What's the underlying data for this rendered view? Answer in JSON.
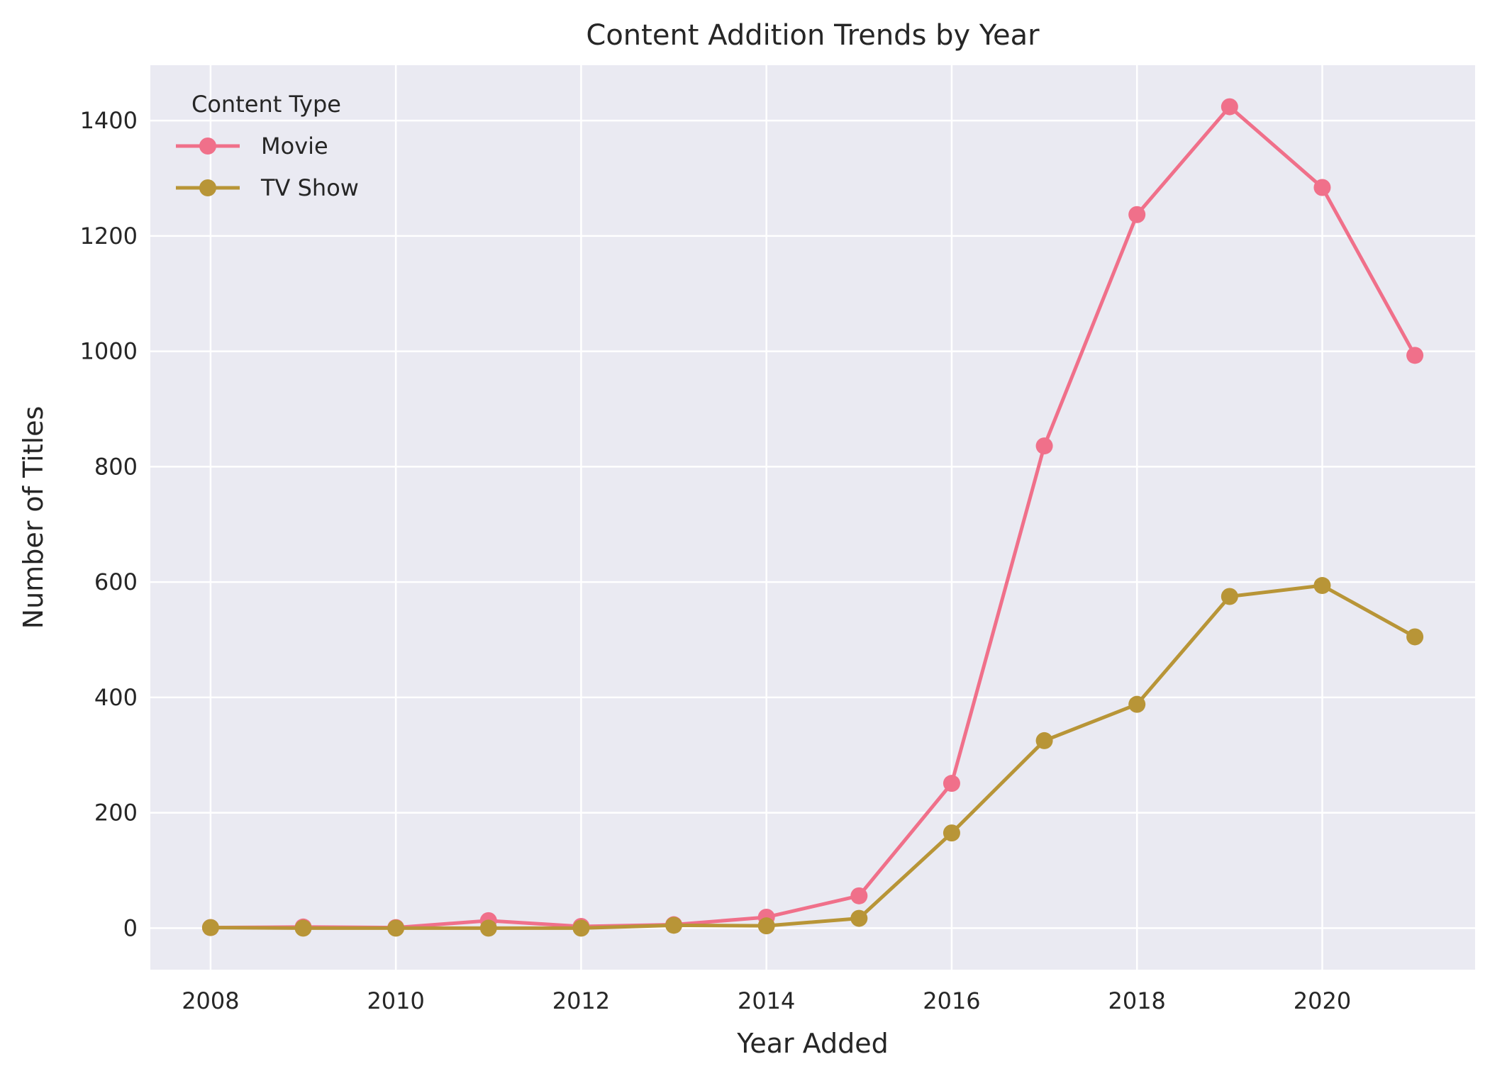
{
  "chart_data": {
    "type": "line",
    "title": "Content Addition Trends by Year",
    "xlabel": "Year Added",
    "ylabel": "Number of Titles",
    "x": [
      2008,
      2009,
      2010,
      2011,
      2012,
      2013,
      2014,
      2015,
      2016,
      2017,
      2018,
      2019,
      2020,
      2021
    ],
    "series": [
      {
        "name": "Movie",
        "color": "#f0708a",
        "values": [
          1,
          2,
          1,
          13,
          3,
          6,
          19,
          56,
          251,
          836,
          1237,
          1424,
          1284,
          993
        ]
      },
      {
        "name": "TV Show",
        "color": "#b89537",
        "values": [
          1,
          0,
          0,
          0,
          0,
          5,
          4,
          17,
          165,
          325,
          388,
          575,
          594,
          505
        ]
      }
    ],
    "xlim": [
      2007.35,
      2021.65
    ],
    "ylim": [
      -72,
      1496
    ],
    "xticks": [
      "2008",
      "2010",
      "2012",
      "2014",
      "2016",
      "2018",
      "2020"
    ],
    "yticks": [
      "0",
      "200",
      "400",
      "600",
      "800",
      "1000",
      "1200",
      "1400"
    ],
    "grid": true,
    "legend": {
      "title": "Content Type",
      "placement": "top-left"
    },
    "colors": {
      "plot_background": "#eaeaf2",
      "grid": "#ffffff",
      "text": "#262626"
    }
  }
}
